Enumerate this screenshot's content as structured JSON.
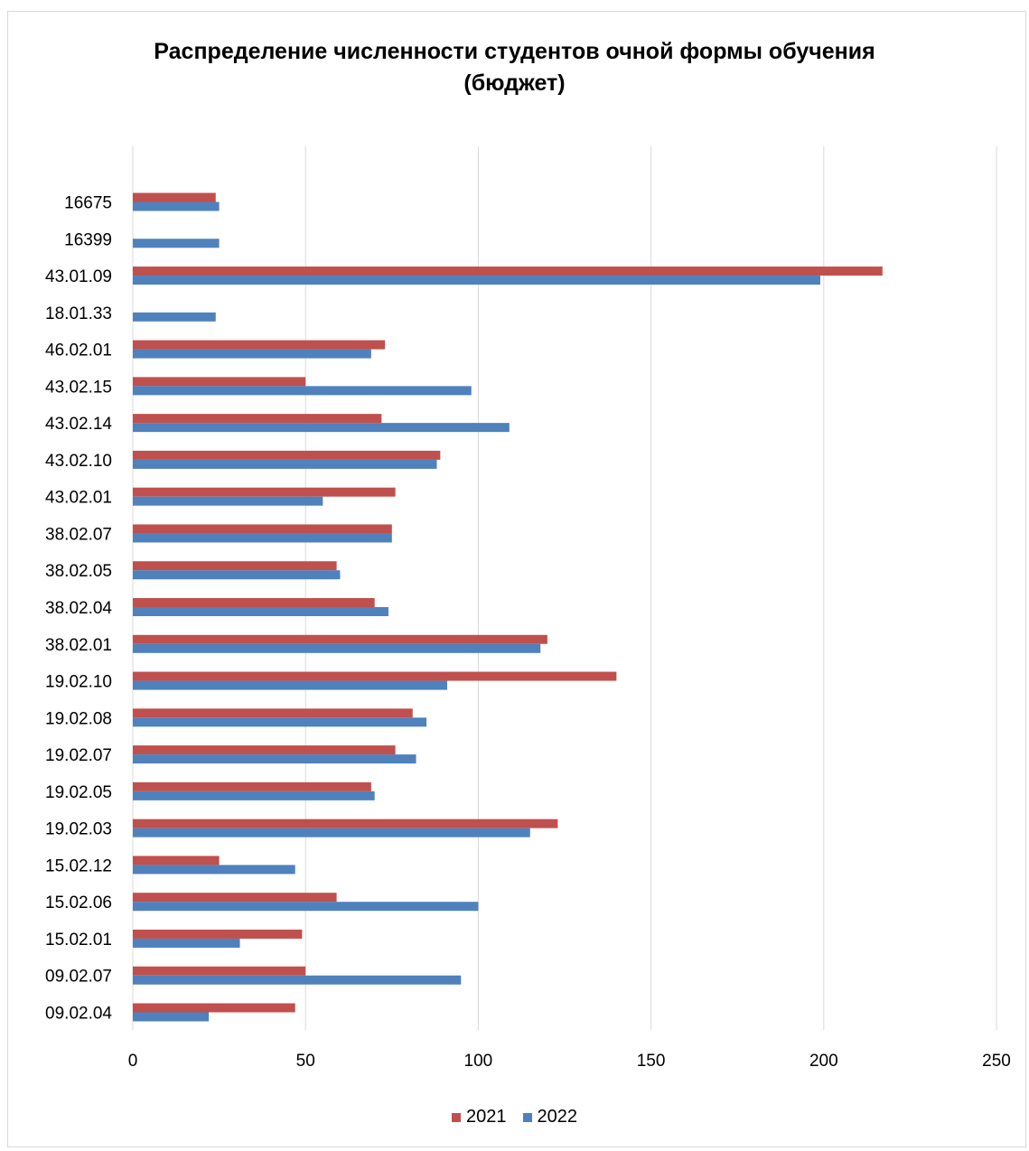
{
  "chart_data": {
    "type": "bar",
    "orientation": "horizontal",
    "title_lines": [
      "Распределение численности студентов очной формы обучения",
      "(бюджет)"
    ],
    "categories": [
      "16675",
      "16399",
      "43.01.09",
      "18.01.33",
      "46.02.01",
      "43.02.15",
      "43.02.14",
      "43.02.10",
      "43.02.01",
      "38.02.07",
      "38.02.05",
      "38.02.04",
      "38.02.01",
      "19.02.10",
      "19.02.08",
      "19.02.07",
      "19.02.05",
      "19.02.03",
      "15.02.12",
      "15.02.06",
      "15.02.01",
      "09.02.07",
      "09.02.04"
    ],
    "series": [
      {
        "name": "2021",
        "color": "#c0504d",
        "values": [
          24,
          null,
          217,
          null,
          73,
          50,
          72,
          89,
          76,
          75,
          59,
          70,
          120,
          140,
          81,
          76,
          69,
          123,
          25,
          59,
          49,
          50,
          47
        ]
      },
      {
        "name": "2022",
        "color": "#4f81bd",
        "values": [
          25,
          25,
          199,
          24,
          69,
          98,
          109,
          88,
          55,
          75,
          60,
          74,
          118,
          91,
          85,
          82,
          70,
          115,
          47,
          100,
          31,
          95,
          22
        ]
      }
    ],
    "xlim": [
      0,
      250
    ],
    "x_ticks": [
      0,
      50,
      100,
      150,
      200,
      250
    ],
    "grid": true,
    "legend_position": "bottom"
  }
}
